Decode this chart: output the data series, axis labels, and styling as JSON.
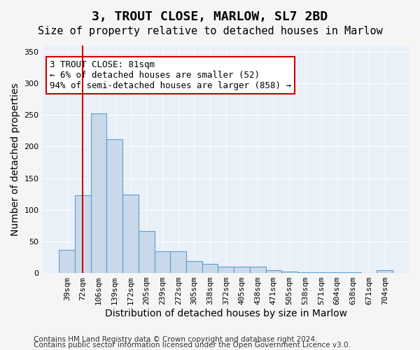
{
  "title1": "3, TROUT CLOSE, MARLOW, SL7 2BD",
  "title2": "Size of property relative to detached houses in Marlow",
  "xlabel": "Distribution of detached houses by size in Marlow",
  "ylabel": "Number of detached properties",
  "categories": [
    "39sqm",
    "72sqm",
    "106sqm",
    "139sqm",
    "172sqm",
    "205sqm",
    "239sqm",
    "272sqm",
    "305sqm",
    "338sqm",
    "372sqm",
    "405sqm",
    "438sqm",
    "471sqm",
    "505sqm",
    "538sqm",
    "571sqm",
    "604sqm",
    "638sqm",
    "671sqm",
    "704sqm"
  ],
  "values": [
    37,
    123,
    253,
    212,
    124,
    67,
    34,
    34,
    19,
    14,
    10,
    10,
    10,
    5,
    2,
    1,
    1,
    1,
    1,
    0,
    4
  ],
  "bar_color": "#c9d9ea",
  "bar_edge_color": "#5a9fd4",
  "vline_x": 1,
  "vline_color": "#cc0000",
  "annotation_text": "3 TROUT CLOSE: 81sqm\n← 6% of detached houses are smaller (52)\n94% of semi-detached houses are larger (858) →",
  "annotation_box_color": "#ffffff",
  "annotation_box_edge_color": "#cc0000",
  "ylim": [
    0,
    360
  ],
  "yticks": [
    0,
    50,
    100,
    150,
    200,
    250,
    300,
    350
  ],
  "background_color": "#eaf0f8",
  "plot_bg_color": "#eaf0f8",
  "footer_line1": "Contains HM Land Registry data © Crown copyright and database right 2024.",
  "footer_line2": "Contains public sector information licensed under the Open Government Licence v3.0.",
  "title1_fontsize": 13,
  "title2_fontsize": 11,
  "xlabel_fontsize": 10,
  "ylabel_fontsize": 10,
  "tick_fontsize": 8,
  "annotation_fontsize": 9,
  "footer_fontsize": 7.5
}
